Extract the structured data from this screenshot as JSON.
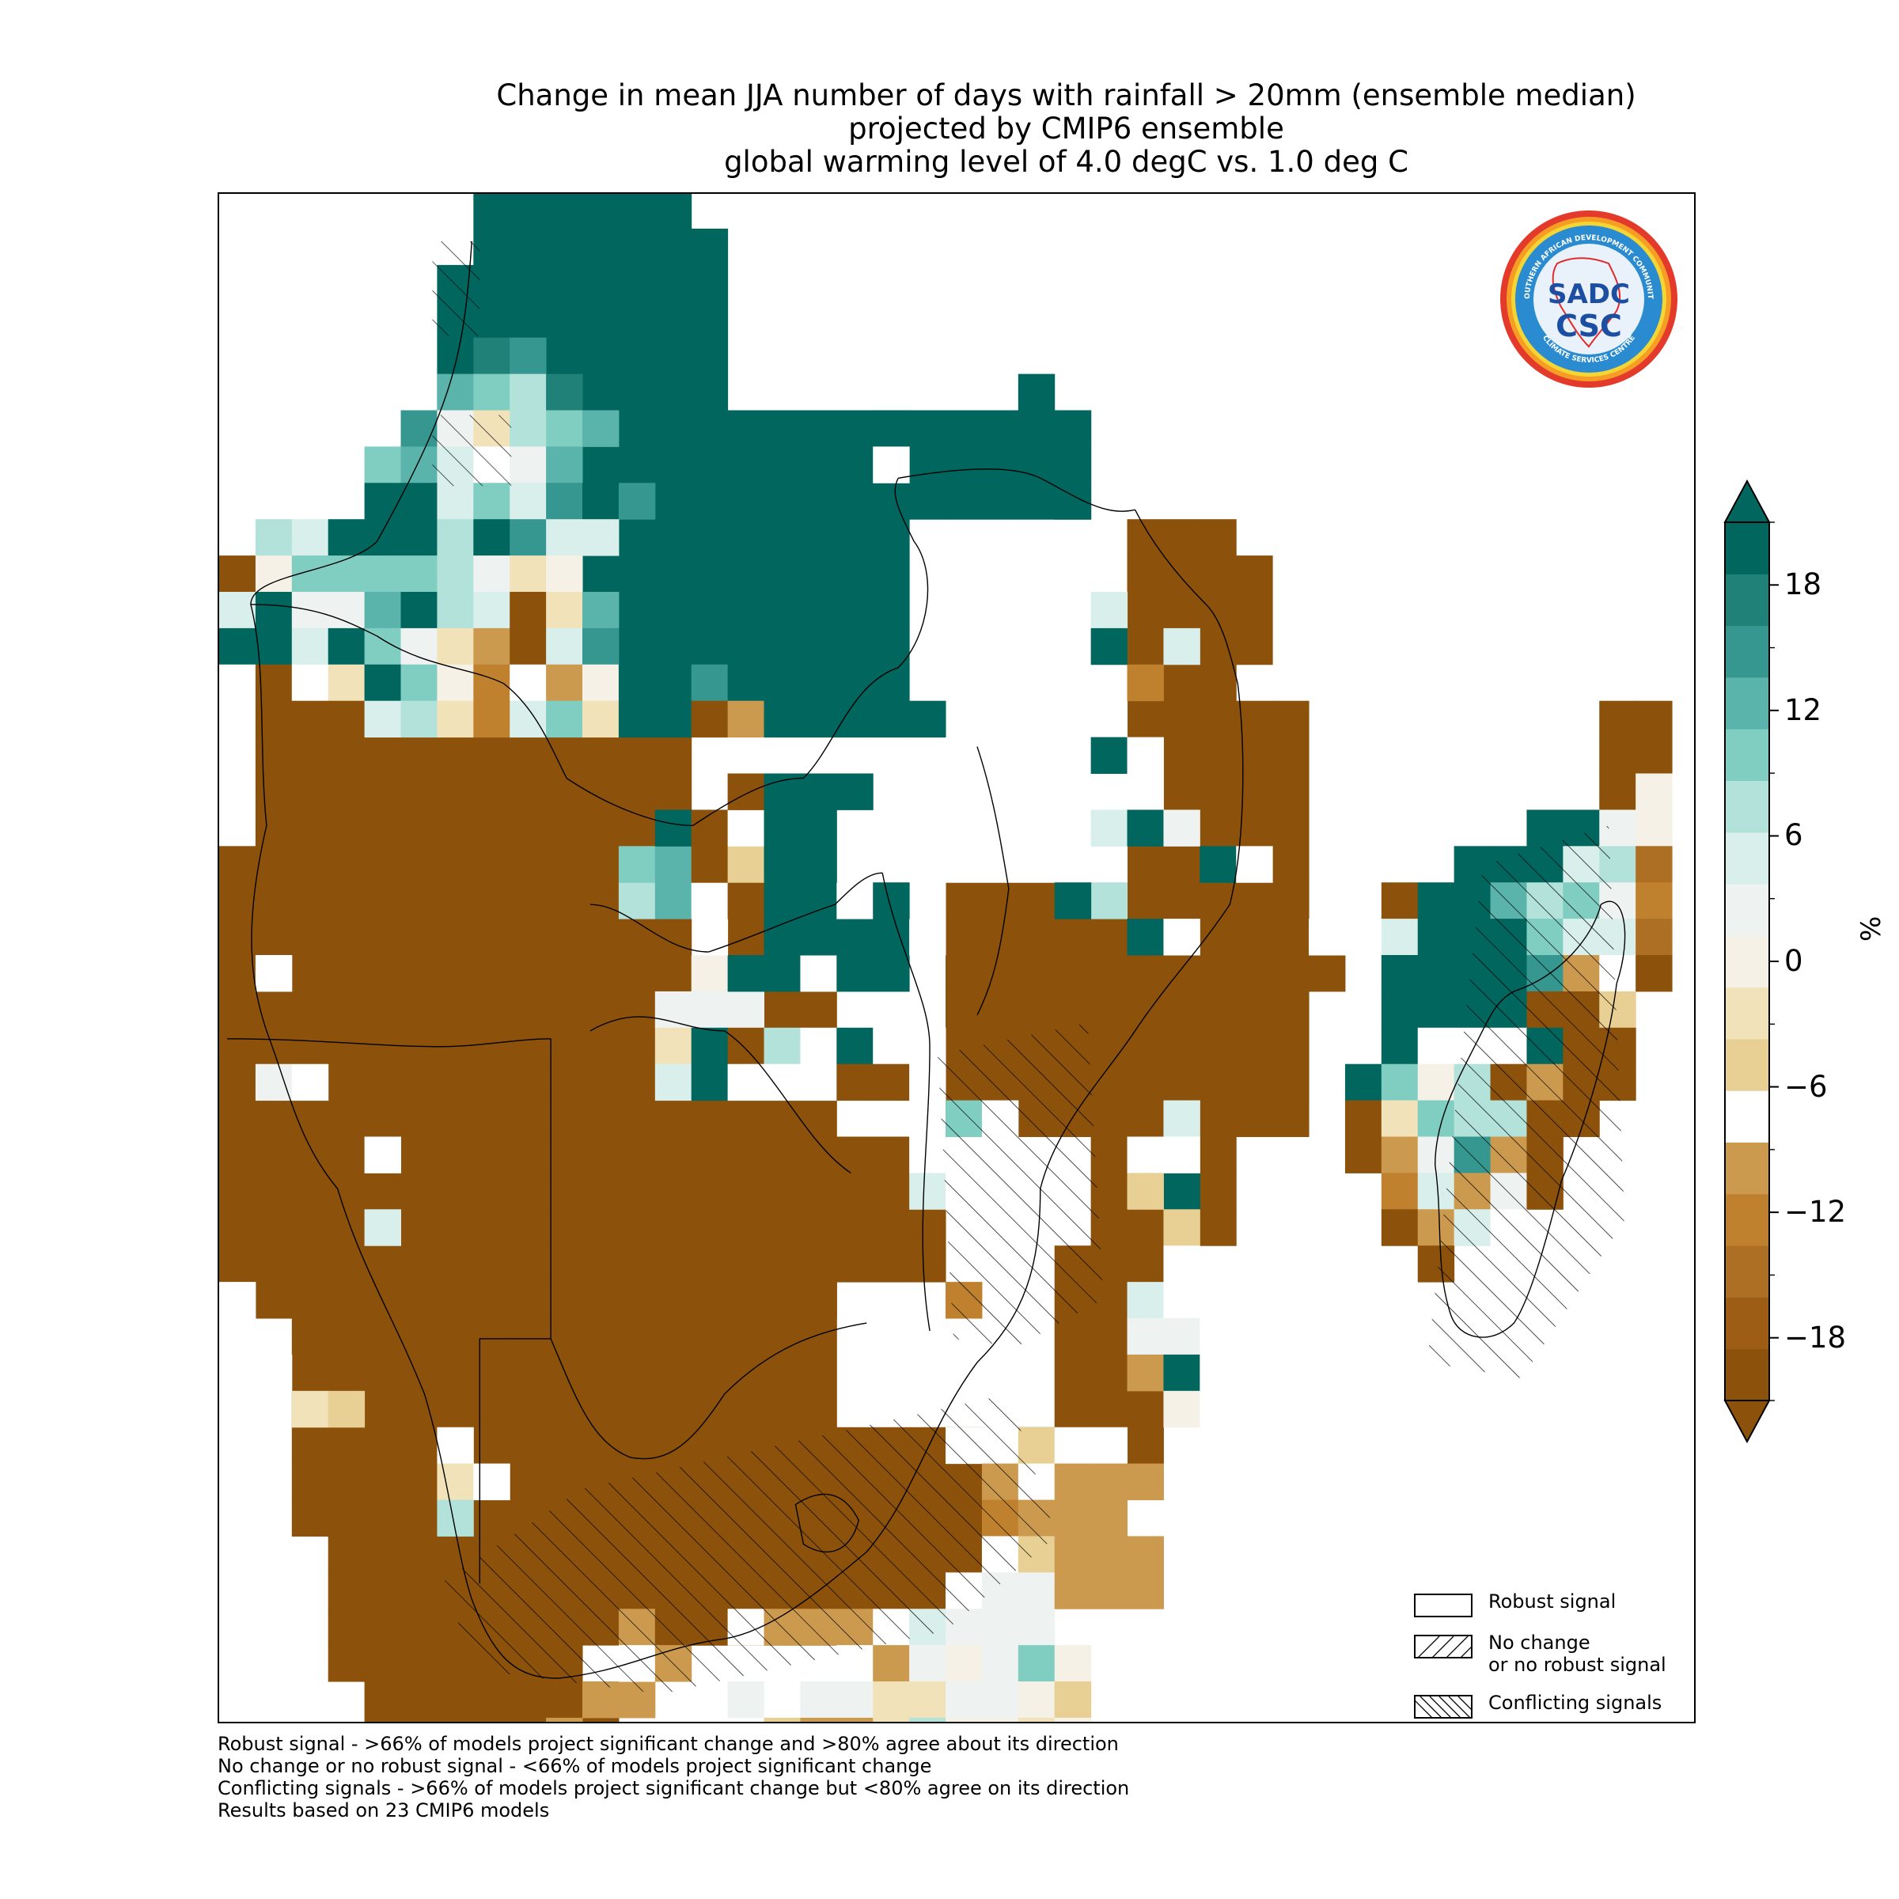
{
  "title": {
    "line1": "Change in mean JJA number of days with rainfall > 20mm (ensemble median)",
    "line2": "projected by CMIP6 ensemble",
    "line3": "global warming level of 4.0 degC vs. 1.0 deg C"
  },
  "logo": {
    "outer_text": "SOUTHERN AFRICAN DEVELOPMENT COMMUNITY",
    "inner_text": "CLIMATE SERVICES CENTRE",
    "monogram": "SADC",
    "csc": "CSC"
  },
  "legend": {
    "robust": "Robust signal",
    "no_change": "No change\nor no robust signal",
    "conflicting": "Conflicting signals"
  },
  "colorbar": {
    "unit": "%",
    "ticks": [
      "18",
      "12",
      "6",
      "0",
      "−6",
      "−12",
      "−18"
    ],
    "tick_values": [
      18,
      12,
      6,
      0,
      -6,
      -12,
      -18
    ],
    "range": [
      -21,
      21
    ],
    "colors_low_to_high": [
      "#8c510a",
      "#9d5d15",
      "#ad6f24",
      "#bf812d",
      "#cc9a4f",
      "#ffffff",
      "#e8cf93",
      "#f1e2b9",
      "#f5f1e6",
      "#eef2f1",
      "#d8efec",
      "#b2e2da",
      "#80cdc1",
      "#5ab4ab",
      "#35978f",
      "#1f8178",
      "#01665e"
    ]
  },
  "footnotes": [
    "Robust signal - >66% of models project significant change and >80% agree about its direction",
    "No change or no robust signal - <66% of models project significant change",
    "Conflicting signals - >66% of models project significant change but <80% agree on its direction",
    "Results based on 23 CMIP6 models"
  ],
  "map_colors": {
    "wet": "#01665e",
    "dry": "#8c510a",
    "no_data": "#ffffff"
  }
}
